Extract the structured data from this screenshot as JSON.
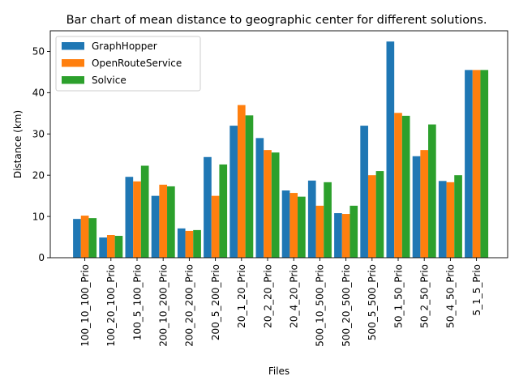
{
  "chart_data": {
    "type": "bar",
    "title": "Bar chart of mean distance to geographic center for different solutions.",
    "xlabel": "Files",
    "ylabel": "Distance (km)",
    "ylim": [
      0,
      55
    ],
    "yticks": [
      0,
      10,
      20,
      30,
      40,
      50
    ],
    "grid": false,
    "legend_position": "top-left",
    "categories": [
      "100_10_100_Prio",
      "100_20_100_Prio",
      "100_5_100_Prio",
      "200_10_200_Prio",
      "200_20_200_Prio",
      "200_5_200_Prio",
      "20_1_20_Prio",
      "20_2_20_Prio",
      "20_4_20_Prio",
      "500_10_500_Prio",
      "500_20_500_Prio",
      "500_5_500_Prio",
      "50_1_50_Prio",
      "50_2_50_Prio",
      "50_4_50_Prio",
      "5_1_5_Prio"
    ],
    "series": [
      {
        "name": "GraphHopper",
        "color": "#1f77b4",
        "values": [
          9.4,
          4.9,
          19.6,
          15.0,
          7.1,
          24.4,
          32.0,
          29.0,
          16.3,
          18.7,
          10.8,
          32.0,
          52.4,
          24.6,
          18.6,
          45.5
        ]
      },
      {
        "name": "OpenRouteService",
        "color": "#ff7f0e",
        "values": [
          10.2,
          5.5,
          18.5,
          17.7,
          6.5,
          15.0,
          37.0,
          26.1,
          15.7,
          12.6,
          10.6,
          20.0,
          35.1,
          26.1,
          18.3,
          45.5
        ]
      },
      {
        "name": "Solvice",
        "color": "#2ca02c",
        "values": [
          9.6,
          5.3,
          22.3,
          17.3,
          6.7,
          22.6,
          34.5,
          25.5,
          14.8,
          18.3,
          12.6,
          21.0,
          34.4,
          32.3,
          20.0,
          45.5
        ]
      }
    ]
  }
}
